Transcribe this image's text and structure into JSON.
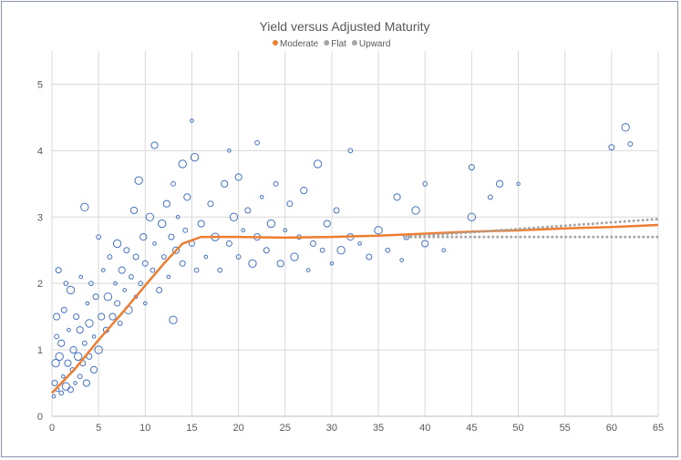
{
  "chart_data": {
    "type": "scatter",
    "title": "Yield versus Adjusted Maturity",
    "xlim": [
      0,
      65
    ],
    "ylim": [
      0,
      5.5
    ],
    "x_ticks": [
      0,
      5,
      10,
      15,
      20,
      25,
      30,
      35,
      40,
      45,
      50,
      55,
      60,
      65
    ],
    "y_ticks": [
      0,
      1,
      2,
      3,
      4,
      5
    ],
    "grid": true,
    "legend_position": "top",
    "legend": [
      {
        "name": "Moderate",
        "color": "#ed7d31"
      },
      {
        "name": "Flat",
        "color": "#a5a5a5"
      },
      {
        "name": "Upward",
        "color": "#a5a5a5"
      }
    ],
    "scatter_color": "#4472c4",
    "scatter_points": [
      [
        0.2,
        0.3
      ],
      [
        0.3,
        0.5
      ],
      [
        0.4,
        0.8
      ],
      [
        0.5,
        1.2
      ],
      [
        0.5,
        1.5
      ],
      [
        0.6,
        0.4
      ],
      [
        0.7,
        2.2
      ],
      [
        0.8,
        0.9
      ],
      [
        1,
        0.35
      ],
      [
        1,
        1.1
      ],
      [
        1.2,
        0.6
      ],
      [
        1.3,
        1.6
      ],
      [
        1.5,
        0.45
      ],
      [
        1.5,
        2.0
      ],
      [
        1.7,
        0.8
      ],
      [
        1.8,
        1.3
      ],
      [
        2,
        0.4
      ],
      [
        2,
        1.9
      ],
      [
        2.2,
        0.7
      ],
      [
        2.3,
        1.0
      ],
      [
        2.5,
        0.5
      ],
      [
        2.6,
        1.5
      ],
      [
        2.8,
        0.9
      ],
      [
        3,
        0.6
      ],
      [
        3,
        1.3
      ],
      [
        3.1,
        2.1
      ],
      [
        3.3,
        0.8
      ],
      [
        3.5,
        3.15
      ],
      [
        3.5,
        1.1
      ],
      [
        3.7,
        0.5
      ],
      [
        3.8,
        1.7
      ],
      [
        4,
        0.9
      ],
      [
        4,
        1.4
      ],
      [
        4.2,
        2.0
      ],
      [
        4.5,
        0.7
      ],
      [
        4.5,
        1.2
      ],
      [
        4.7,
        1.8
      ],
      [
        5,
        1.0
      ],
      [
        5,
        2.7
      ],
      [
        5.3,
        1.5
      ],
      [
        5.5,
        2.2
      ],
      [
        5.8,
        1.3
      ],
      [
        6,
        1.8
      ],
      [
        6.2,
        2.4
      ],
      [
        6.5,
        1.5
      ],
      [
        6.8,
        2.0
      ],
      [
        7,
        1.7
      ],
      [
        7,
        2.6
      ],
      [
        7.3,
        1.4
      ],
      [
        7.5,
        2.2
      ],
      [
        7.8,
        1.9
      ],
      [
        8,
        2.5
      ],
      [
        8.2,
        1.6
      ],
      [
        8.5,
        2.1
      ],
      [
        8.8,
        3.1
      ],
      [
        9,
        1.8
      ],
      [
        9,
        2.4
      ],
      [
        9.3,
        3.55
      ],
      [
        9.5,
        2.0
      ],
      [
        9.8,
        2.7
      ],
      [
        10,
        1.7
      ],
      [
        10,
        2.3
      ],
      [
        10.5,
        3.0
      ],
      [
        10.8,
        2.2
      ],
      [
        11,
        4.08
      ],
      [
        11,
        2.6
      ],
      [
        11.5,
        1.9
      ],
      [
        11.8,
        2.9
      ],
      [
        12,
        2.4
      ],
      [
        12.3,
        3.2
      ],
      [
        12.5,
        2.1
      ],
      [
        12.8,
        2.7
      ],
      [
        13,
        1.45
      ],
      [
        13,
        3.5
      ],
      [
        13.3,
        2.5
      ],
      [
        13.5,
        3.0
      ],
      [
        14,
        2.3
      ],
      [
        14,
        3.8
      ],
      [
        14.3,
        2.8
      ],
      [
        14.5,
        3.3
      ],
      [
        15,
        4.45
      ],
      [
        15,
        2.6
      ],
      [
        15.3,
        3.9
      ],
      [
        15.5,
        2.2
      ],
      [
        16,
        2.9
      ],
      [
        16.5,
        2.4
      ],
      [
        17,
        3.2
      ],
      [
        17.5,
        2.7
      ],
      [
        18,
        2.2
      ],
      [
        18.5,
        3.5
      ],
      [
        19,
        4.0
      ],
      [
        19,
        2.6
      ],
      [
        19.5,
        3.0
      ],
      [
        20,
        2.4
      ],
      [
        20,
        3.6
      ],
      [
        20.5,
        2.8
      ],
      [
        21,
        3.1
      ],
      [
        21.5,
        2.3
      ],
      [
        22,
        4.12
      ],
      [
        22,
        2.7
      ],
      [
        22.5,
        3.3
      ],
      [
        23,
        2.5
      ],
      [
        23.5,
        2.9
      ],
      [
        24,
        3.5
      ],
      [
        24.5,
        2.3
      ],
      [
        25,
        2.8
      ],
      [
        25.5,
        3.2
      ],
      [
        26,
        2.4
      ],
      [
        26.5,
        2.7
      ],
      [
        27,
        3.4
      ],
      [
        27.5,
        2.2
      ],
      [
        28,
        2.6
      ],
      [
        28.5,
        3.8
      ],
      [
        29,
        2.5
      ],
      [
        29.5,
        2.9
      ],
      [
        30,
        2.3
      ],
      [
        30.5,
        3.1
      ],
      [
        31,
        2.5
      ],
      [
        32,
        4.0
      ],
      [
        32,
        2.7
      ],
      [
        33,
        2.6
      ],
      [
        34,
        2.4
      ],
      [
        35,
        2.8
      ],
      [
        36,
        2.5
      ],
      [
        37,
        3.3
      ],
      [
        37.5,
        2.35
      ],
      [
        38,
        2.7
      ],
      [
        39,
        3.1
      ],
      [
        40,
        3.5
      ],
      [
        40,
        2.6
      ],
      [
        42,
        2.5
      ],
      [
        45,
        3.75
      ],
      [
        45,
        3.0
      ],
      [
        47,
        3.3
      ],
      [
        48,
        3.5
      ],
      [
        50,
        3.5
      ],
      [
        60,
        4.05
      ],
      [
        61.5,
        4.35
      ],
      [
        62,
        4.1
      ]
    ],
    "series": [
      {
        "name": "Moderate",
        "type": "line",
        "points": [
          [
            0,
            0.35
          ],
          [
            2.5,
            0.72
          ],
          [
            5,
            1.15
          ],
          [
            7.5,
            1.55
          ],
          [
            10,
            1.97
          ],
          [
            12,
            2.3
          ],
          [
            14,
            2.6
          ],
          [
            16,
            2.7
          ],
          [
            20,
            2.7
          ],
          [
            25,
            2.69
          ],
          [
            30,
            2.7
          ],
          [
            35,
            2.72
          ],
          [
            40,
            2.75
          ],
          [
            45,
            2.78
          ],
          [
            50,
            2.8
          ],
          [
            55,
            2.83
          ],
          [
            60,
            2.85
          ],
          [
            65,
            2.88
          ]
        ]
      },
      {
        "name": "Flat",
        "type": "dotted",
        "points": [
          [
            38,
            2.7
          ],
          [
            65,
            2.7
          ]
        ]
      },
      {
        "name": "Upward",
        "type": "dotted",
        "points": [
          [
            38,
            2.7
          ],
          [
            65,
            2.97
          ]
        ]
      }
    ]
  }
}
